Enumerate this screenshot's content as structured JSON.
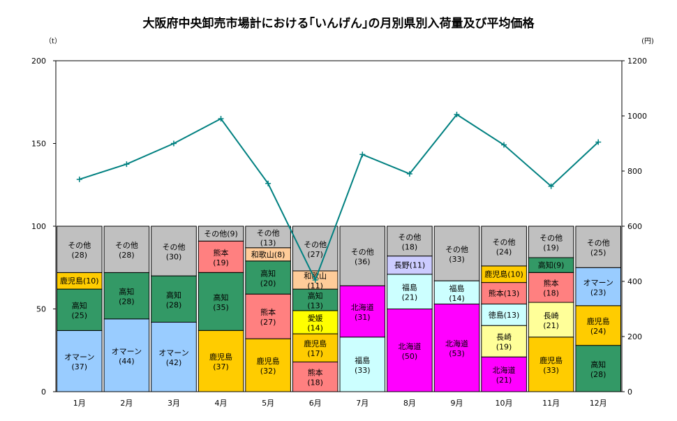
{
  "chart_data": {
    "type": "bar",
    "subtype": "stacked-bar-with-line",
    "title": "大阪府中央卸売市場計における｢いんげん｣の月別県別入荷量及び平均価格",
    "left_unit": "（t）",
    "right_unit": "(円)",
    "categories": [
      "1月",
      "2月",
      "3月",
      "4月",
      "5月",
      "6月",
      "7月",
      "8月",
      "9月",
      "10月",
      "11月",
      "12月"
    ],
    "y_left": {
      "min": 0,
      "max": 200,
      "ticks": [
        0,
        50,
        100,
        150,
        200
      ]
    },
    "y_right": {
      "min": 0,
      "max": 1200,
      "ticks": [
        0,
        200,
        400,
        600,
        800,
        1000,
        1200
      ]
    },
    "colors": {
      "オマーン": "#99ccff",
      "高知": "#339966",
      "鹿児島": "#ffcc00",
      "熊本": "#ff8080",
      "和歌山": "#ffcc99",
      "愛媛": "#ffff00",
      "北海道": "#ff00ff",
      "福島": "#ccffff",
      "長野": "#ccccff",
      "徳島": "#ccffff",
      "長崎": "#ffff99",
      "その他": "#c0c0c0",
      "line": "#008080"
    },
    "stacks": [
      {
        "month": "1月",
        "segments": [
          {
            "name": "オマーン",
            "value": 37,
            "label": "オマーン",
            "sub": "(37)"
          },
          {
            "name": "高知",
            "value": 25,
            "label": "高知",
            "sub": "(25)"
          },
          {
            "name": "鹿児島",
            "value": 10,
            "label": "鹿児島(10)",
            "sub": ""
          },
          {
            "name": "その他",
            "value": 28,
            "label": "その他",
            "sub": "(28)"
          }
        ]
      },
      {
        "month": "2月",
        "segments": [
          {
            "name": "オマーン",
            "value": 44,
            "label": "オマーン",
            "sub": "(44)"
          },
          {
            "name": "高知",
            "value": 28,
            "label": "高知",
            "sub": "(28)"
          },
          {
            "name": "その他",
            "value": 28,
            "label": "その他",
            "sub": "(28)"
          }
        ]
      },
      {
        "month": "3月",
        "segments": [
          {
            "name": "オマーン",
            "value": 42,
            "label": "オマーン",
            "sub": "(42)"
          },
          {
            "name": "高知",
            "value": 28,
            "label": "高知",
            "sub": "(28)"
          },
          {
            "name": "その他",
            "value": 30,
            "label": "その他",
            "sub": "(30)"
          }
        ]
      },
      {
        "month": "4月",
        "segments": [
          {
            "name": "鹿児島",
            "value": 37,
            "label": "鹿児島",
            "sub": "(37)"
          },
          {
            "name": "高知",
            "value": 35,
            "label": "高知",
            "sub": "(35)"
          },
          {
            "name": "熊本",
            "value": 19,
            "label": "熊本",
            "sub": "(19)"
          },
          {
            "name": "その他",
            "value": 9,
            "label": "その他(9)",
            "sub": ""
          }
        ]
      },
      {
        "month": "5月",
        "segments": [
          {
            "name": "鹿児島",
            "value": 32,
            "label": "鹿児島",
            "sub": "(32)"
          },
          {
            "name": "熊本",
            "value": 27,
            "label": "熊本",
            "sub": "(27)"
          },
          {
            "name": "高知",
            "value": 20,
            "label": "高知",
            "sub": "(20)"
          },
          {
            "name": "和歌山",
            "value": 8,
            "label": "和歌山(8)",
            "sub": ""
          },
          {
            "name": "その他",
            "value": 13,
            "label": "その他",
            "sub": "(13)"
          }
        ]
      },
      {
        "month": "6月",
        "segments": [
          {
            "name": "熊本",
            "value": 18,
            "label": "熊本",
            "sub": "(18)"
          },
          {
            "name": "鹿児島",
            "value": 17,
            "label": "鹿児島",
            "sub": "(17)"
          },
          {
            "name": "愛媛",
            "value": 14,
            "label": "愛媛",
            "sub": "(14)"
          },
          {
            "name": "高知",
            "value": 13,
            "label": "高知",
            "sub": "(13)"
          },
          {
            "name": "和歌山",
            "value": 11,
            "label": "和歌山",
            "sub": "(11)"
          },
          {
            "name": "その他",
            "value": 27,
            "label": "その他",
            "sub": "(27)"
          }
        ]
      },
      {
        "month": "7月",
        "segments": [
          {
            "name": "福島",
            "value": 33,
            "label": "福島",
            "sub": "(33)"
          },
          {
            "name": "北海道",
            "value": 31,
            "label": "北海道",
            "sub": "(31)"
          },
          {
            "name": "その他",
            "value": 36,
            "label": "その他",
            "sub": "(36)"
          }
        ]
      },
      {
        "month": "8月",
        "segments": [
          {
            "name": "北海道",
            "value": 50,
            "label": "北海道",
            "sub": "(50)"
          },
          {
            "name": "福島",
            "value": 21,
            "label": "福島",
            "sub": "(21)"
          },
          {
            "name": "長野",
            "value": 11,
            "label": "長野(11)",
            "sub": ""
          },
          {
            "name": "その他",
            "value": 18,
            "label": "その他",
            "sub": "(18)"
          }
        ]
      },
      {
        "month": "9月",
        "segments": [
          {
            "name": "北海道",
            "value": 53,
            "label": "北海道",
            "sub": "(53)"
          },
          {
            "name": "福島",
            "value": 14,
            "label": "福島",
            "sub": "(14)"
          },
          {
            "name": "その他",
            "value": 33,
            "label": "その他",
            "sub": "(33)"
          }
        ]
      },
      {
        "month": "10月",
        "segments": [
          {
            "name": "北海道",
            "value": 21,
            "label": "北海道",
            "sub": "(21)"
          },
          {
            "name": "長崎",
            "value": 19,
            "label": "長崎",
            "sub": "(19)"
          },
          {
            "name": "徳島",
            "value": 13,
            "label": "徳島(13)",
            "sub": ""
          },
          {
            "name": "熊本",
            "value": 13,
            "label": "熊本(13)",
            "sub": ""
          },
          {
            "name": "鹿児島",
            "value": 10,
            "label": "鹿児島(10)",
            "sub": ""
          },
          {
            "name": "その他",
            "value": 24,
            "label": "その他",
            "sub": "(24)"
          }
        ]
      },
      {
        "month": "11月",
        "segments": [
          {
            "name": "鹿児島",
            "value": 33,
            "label": "鹿児島",
            "sub": "(33)"
          },
          {
            "name": "長崎",
            "value": 21,
            "label": "長崎",
            "sub": "(21)"
          },
          {
            "name": "熊本",
            "value": 18,
            "label": "熊本",
            "sub": "(18)"
          },
          {
            "name": "高知",
            "value": 9,
            "label": "高知(9)",
            "sub": ""
          },
          {
            "name": "その他",
            "value": 19,
            "label": "その他",
            "sub": "(19)"
          }
        ]
      },
      {
        "month": "12月",
        "segments": [
          {
            "name": "高知",
            "value": 28,
            "label": "高知",
            "sub": "(28)"
          },
          {
            "name": "鹿児島",
            "value": 24,
            "label": "鹿児島",
            "sub": "(24)"
          },
          {
            "name": "オマーン",
            "value": 23,
            "label": "オマーン",
            "sub": "(23)"
          },
          {
            "name": "その他",
            "value": 25,
            "label": "その他",
            "sub": "(25)"
          }
        ]
      }
    ],
    "line": {
      "name": "平均価格",
      "axis": "right",
      "values": [
        770,
        825,
        900,
        990,
        755,
        405,
        860,
        790,
        1005,
        895,
        745,
        905
      ]
    }
  }
}
